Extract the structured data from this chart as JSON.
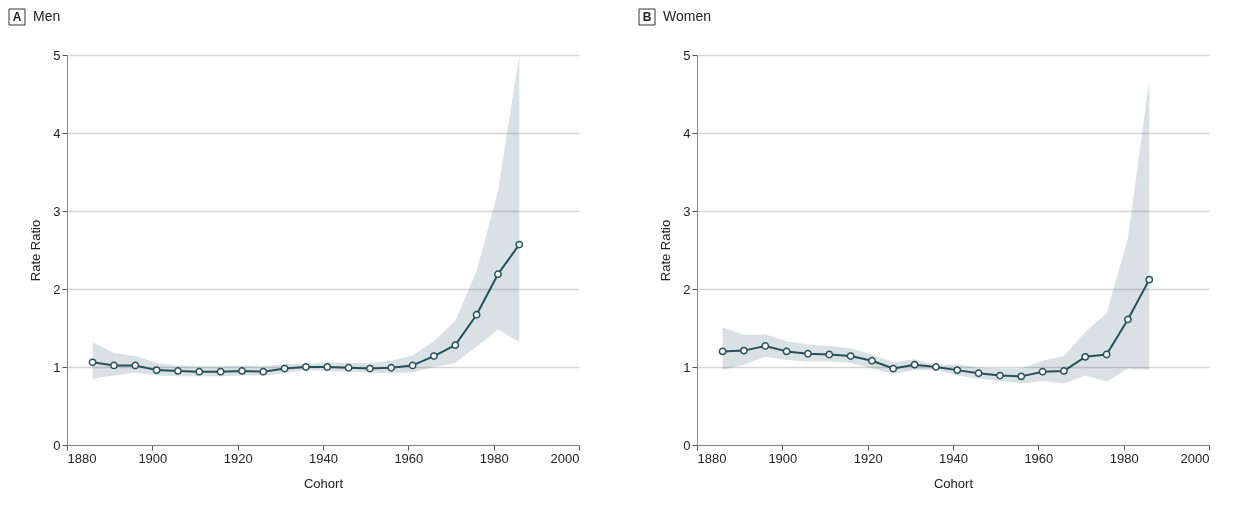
{
  "chart_data": [
    {
      "type": "line",
      "title": "A",
      "subtitle": "Men",
      "xlabel": "Cohort",
      "ylabel": "Rate Ratio",
      "xlim": [
        1880,
        2000
      ],
      "xticks": [
        1880,
        1900,
        1920,
        1940,
        1960,
        1980,
        2000
      ],
      "ylim": [
        0,
        5
      ],
      "yticks": [
        0,
        1,
        2,
        3,
        4,
        5
      ],
      "grid": "y",
      "marker": "circle",
      "line_style": "solid",
      "x": [
        1886,
        1891,
        1896,
        1901,
        1906,
        1911,
        1916,
        1921,
        1926,
        1931,
        1936,
        1941,
        1946,
        1951,
        1956,
        1961,
        1966,
        1971,
        1976,
        1981,
        1986
      ],
      "series": [
        {
          "color": "#24505c",
          "values": [
            1.06,
            1.02,
            1.02,
            0.96,
            0.95,
            0.94,
            0.94,
            0.95,
            0.94,
            0.98,
            1.0,
            1.0,
            0.99,
            0.98,
            0.99,
            1.02,
            1.14,
            1.28,
            1.67,
            2.19,
            2.57
          ],
          "lower": [
            0.85,
            0.89,
            0.93,
            0.89,
            0.88,
            0.88,
            0.88,
            0.89,
            0.89,
            0.92,
            0.96,
            0.95,
            0.94,
            0.93,
            0.92,
            0.93,
            1.0,
            1.05,
            1.26,
            1.48,
            1.32
          ],
          "upper": [
            1.32,
            1.18,
            1.14,
            1.05,
            1.02,
            1.01,
            1.01,
            1.02,
            1.01,
            1.04,
            1.04,
            1.06,
            1.05,
            1.05,
            1.08,
            1.15,
            1.33,
            1.59,
            2.23,
            3.25,
            5.0
          ]
        }
      ]
    },
    {
      "type": "line",
      "title": "B",
      "subtitle": "Women",
      "xlabel": "Cohort",
      "ylabel": "Rate Ratio",
      "xlim": [
        1880,
        2000
      ],
      "xticks": [
        1880,
        1900,
        1920,
        1940,
        1960,
        1980,
        2000
      ],
      "ylim": [
        0,
        5
      ],
      "yticks": [
        0,
        1,
        2,
        3,
        4,
        5
      ],
      "grid": "y",
      "marker": "circle",
      "line_style": "solid",
      "x": [
        1886,
        1891,
        1896,
        1901,
        1906,
        1911,
        1916,
        1921,
        1926,
        1931,
        1936,
        1941,
        1946,
        1951,
        1956,
        1961,
        1966,
        1971,
        1976,
        1981,
        1986
      ],
      "series": [
        {
          "color": "#24505c",
          "values": [
            1.2,
            1.21,
            1.27,
            1.2,
            1.17,
            1.16,
            1.14,
            1.08,
            0.98,
            1.03,
            1.0,
            0.96,
            0.92,
            0.89,
            0.88,
            0.94,
            0.95,
            1.13,
            1.16,
            1.61,
            2.12
          ],
          "lower": [
            0.96,
            1.03,
            1.13,
            1.09,
            1.07,
            1.07,
            1.05,
            0.98,
            0.91,
            0.96,
            0.96,
            0.89,
            0.85,
            0.82,
            0.79,
            0.82,
            0.79,
            0.89,
            0.81,
            0.98,
            0.96
          ],
          "upper": [
            1.51,
            1.41,
            1.42,
            1.33,
            1.29,
            1.27,
            1.24,
            1.16,
            1.06,
            1.1,
            1.02,
            1.04,
            0.99,
            0.98,
            0.98,
            1.08,
            1.14,
            1.45,
            1.69,
            2.65,
            4.68
          ]
        }
      ]
    }
  ]
}
